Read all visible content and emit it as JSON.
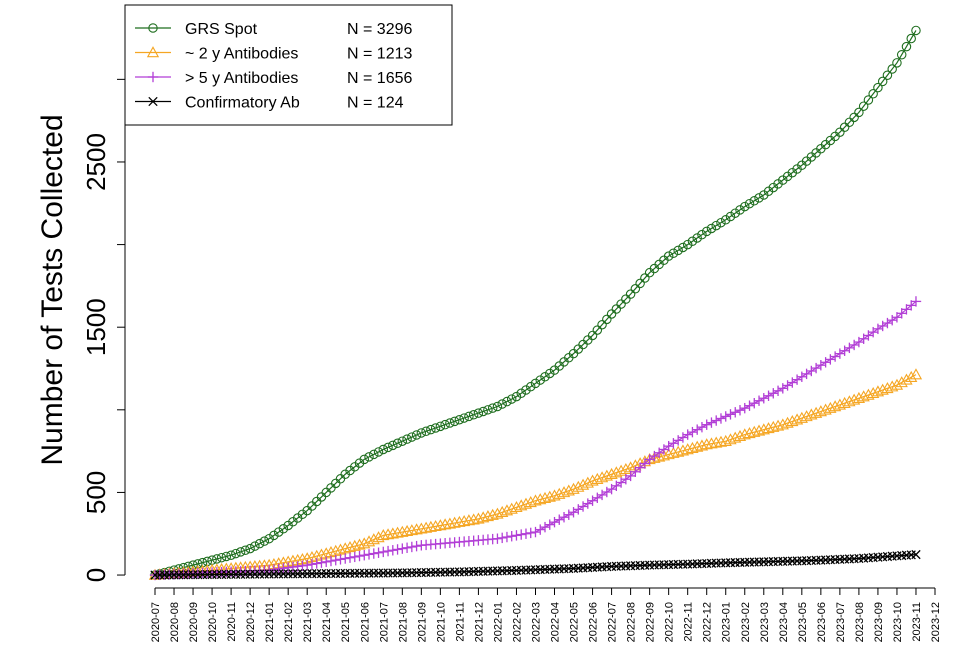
{
  "chart_data": {
    "type": "line",
    "title": "",
    "xlabel": "",
    "ylabel": "Number of Tests Collected",
    "ylim": [
      -30,
      3450
    ],
    "y_ticks": [
      0,
      500,
      1000,
      1500,
      2000,
      2500,
      3000
    ],
    "y_tick_labels": [
      "0",
      "500",
      "1500",
      "2500"
    ],
    "y_tick_label_values": [
      0,
      500,
      1500,
      2500
    ],
    "x_ticks": [
      "2020-07",
      "2020-08",
      "2020-09",
      "2020-10",
      "2020-11",
      "2020-12",
      "2021-01",
      "2021-02",
      "2021-03",
      "2021-04",
      "2021-05",
      "2021-06",
      "2021-07",
      "2021-08",
      "2021-09",
      "2021-10",
      "2021-11",
      "2021-12",
      "2022-01",
      "2022-02",
      "2022-03",
      "2022-04",
      "2022-05",
      "2022-06",
      "2022-07",
      "2022-08",
      "2022-09",
      "2022-10",
      "2022-11",
      "2022-12",
      "2023-01",
      "2023-02",
      "2023-03",
      "2023-04",
      "2023-05",
      "2023-06",
      "2023-07",
      "2023-08",
      "2023-09",
      "2023-10",
      "2023-11",
      "2023-12"
    ],
    "grid": false,
    "legend_position": "top-left",
    "series": [
      {
        "name": "GRS Spot",
        "count_label": "N =  3296",
        "color": "#1f6e1f",
        "marker": "circle",
        "x": [
          "2020-07",
          "2020-08",
          "2020-09",
          "2020-10",
          "2020-11",
          "2020-12",
          "2021-01",
          "2021-02",
          "2021-03",
          "2021-04",
          "2021-05",
          "2021-06",
          "2021-07",
          "2021-08",
          "2021-09",
          "2021-10",
          "2021-11",
          "2021-12",
          "2022-01",
          "2022-02",
          "2022-03",
          "2022-04",
          "2022-05",
          "2022-06",
          "2022-07",
          "2022-08",
          "2022-09",
          "2022-10",
          "2022-11",
          "2022-12",
          "2023-01",
          "2023-02",
          "2023-03",
          "2023-04",
          "2023-05",
          "2023-06",
          "2023-07",
          "2023-08",
          "2023-09",
          "2023-10",
          "2023-11"
        ],
        "values": [
          0,
          30,
          60,
          90,
          120,
          160,
          220,
          300,
          390,
          500,
          610,
          700,
          760,
          810,
          860,
          900,
          940,
          980,
          1020,
          1080,
          1160,
          1240,
          1340,
          1450,
          1580,
          1700,
          1830,
          1930,
          2000,
          2080,
          2150,
          2230,
          2300,
          2390,
          2480,
          2580,
          2680,
          2800,
          2950,
          3100,
          3296
        ]
      },
      {
        "name": "~ 2 y Antibodies",
        "count_label": "N =  1213",
        "color": "#f5a623",
        "marker": "triangle",
        "x": [
          "2020-07",
          "2020-08",
          "2020-09",
          "2020-10",
          "2020-11",
          "2020-12",
          "2021-01",
          "2021-02",
          "2021-03",
          "2021-04",
          "2021-05",
          "2021-06",
          "2021-07",
          "2021-08",
          "2021-09",
          "2021-10",
          "2021-11",
          "2021-12",
          "2022-01",
          "2022-02",
          "2022-03",
          "2022-04",
          "2022-05",
          "2022-06",
          "2022-07",
          "2022-08",
          "2022-09",
          "2022-10",
          "2022-11",
          "2022-12",
          "2023-01",
          "2023-02",
          "2023-03",
          "2023-04",
          "2023-05",
          "2023-06",
          "2023-07",
          "2023-08",
          "2023-09",
          "2023-10",
          "2023-11"
        ],
        "values": [
          0,
          10,
          20,
          30,
          40,
          50,
          60,
          80,
          100,
          130,
          160,
          190,
          240,
          260,
          280,
          300,
          320,
          340,
          370,
          410,
          450,
          480,
          520,
          570,
          610,
          650,
          700,
          730,
          760,
          790,
          810,
          850,
          880,
          910,
          950,
          990,
          1030,
          1070,
          1110,
          1150,
          1213
        ]
      },
      {
        "name": "> 5 y Antibodies",
        "count_label": "N =  1656",
        "color": "#b23fd6",
        "marker": "plus",
        "x": [
          "2020-07",
          "2020-08",
          "2020-09",
          "2020-10",
          "2020-11",
          "2020-12",
          "2021-01",
          "2021-02",
          "2021-03",
          "2021-04",
          "2021-05",
          "2021-06",
          "2021-07",
          "2021-08",
          "2021-09",
          "2021-10",
          "2021-11",
          "2021-12",
          "2022-01",
          "2022-02",
          "2022-03",
          "2022-04",
          "2022-05",
          "2022-06",
          "2022-07",
          "2022-08",
          "2022-09",
          "2022-10",
          "2022-11",
          "2022-12",
          "2023-01",
          "2023-02",
          "2023-03",
          "2023-04",
          "2023-05",
          "2023-06",
          "2023-07",
          "2023-08",
          "2023-09",
          "2023-10",
          "2023-11"
        ],
        "values": [
          0,
          5,
          10,
          15,
          20,
          25,
          30,
          45,
          60,
          80,
          100,
          120,
          140,
          160,
          180,
          190,
          200,
          210,
          220,
          240,
          260,
          320,
          380,
          450,
          520,
          600,
          700,
          780,
          850,
          910,
          960,
          1010,
          1070,
          1130,
          1200,
          1270,
          1340,
          1410,
          1490,
          1560,
          1656
        ]
      },
      {
        "name": "Confirmatory Ab",
        "count_label": "N =  124",
        "color": "#000000",
        "marker": "x",
        "x": [
          "2020-07",
          "2020-08",
          "2020-09",
          "2020-10",
          "2020-11",
          "2020-12",
          "2021-01",
          "2021-02",
          "2021-03",
          "2021-04",
          "2021-05",
          "2021-06",
          "2021-07",
          "2021-08",
          "2021-09",
          "2021-10",
          "2021-11",
          "2021-12",
          "2022-01",
          "2022-02",
          "2022-03",
          "2022-04",
          "2022-05",
          "2022-06",
          "2022-07",
          "2022-08",
          "2022-09",
          "2022-10",
          "2022-11",
          "2022-12",
          "2023-01",
          "2023-02",
          "2023-03",
          "2023-04",
          "2023-05",
          "2023-06",
          "2023-07",
          "2023-08",
          "2023-09",
          "2023-10",
          "2023-11"
        ],
        "values": [
          0,
          1,
          2,
          3,
          4,
          5,
          6,
          7,
          8,
          9,
          10,
          11,
          12,
          13,
          15,
          17,
          19,
          22,
          25,
          28,
          32,
          36,
          40,
          46,
          52,
          56,
          60,
          63,
          66,
          70,
          74,
          77,
          80,
          83,
          86,
          90,
          95,
          100,
          108,
          116,
          124
        ]
      }
    ]
  }
}
